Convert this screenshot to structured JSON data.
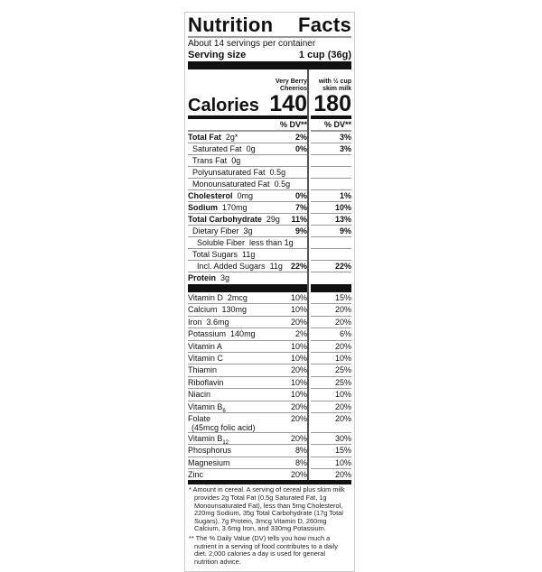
{
  "title": [
    "Nutrition",
    "Facts"
  ],
  "servings_per_container": "About 14 servings per container",
  "serving_size": {
    "label": "Serving size",
    "value": "1 cup (36g)"
  },
  "columns": [
    {
      "header": "Very Berry Cheerios",
      "calories": "140"
    },
    {
      "header": "with ½ cup skim milk",
      "calories": "180"
    }
  ],
  "calories_label": "Calories",
  "dv_header": "% DV**",
  "nutrients": [
    {
      "name": "Total Fat",
      "amount": "2g*",
      "bold": true,
      "indent": 0,
      "dv1": "2%",
      "dv2": "3%"
    },
    {
      "name": "Saturated Fat",
      "amount": "0g",
      "bold": false,
      "indent": 1,
      "dv1": "0%",
      "dv2": "3%"
    },
    {
      "name": "Trans Fat",
      "amount": "0g",
      "bold": false,
      "indent": 1,
      "dv1": "",
      "dv2": ""
    },
    {
      "name": "Polyunsaturated Fat",
      "amount": "0.5g",
      "bold": false,
      "indent": 1,
      "dv1": "",
      "dv2": ""
    },
    {
      "name": "Monounsaturated Fat",
      "amount": "0.5g",
      "bold": false,
      "indent": 1,
      "dv1": "",
      "dv2": ""
    },
    {
      "name": "Cholesterol",
      "amount": "0mg",
      "bold": true,
      "indent": 0,
      "dv1": "0%",
      "dv2": "1%"
    },
    {
      "name": "Sodium",
      "amount": "170mg",
      "bold": true,
      "indent": 0,
      "dv1": "7%",
      "dv2": "10%"
    },
    {
      "name": "Total Carbohydrate",
      "amount": "29g",
      "bold": true,
      "indent": 0,
      "dv1": "11%",
      "dv2": "13%"
    },
    {
      "name": "Dietary Fiber",
      "amount": "3g",
      "bold": false,
      "indent": 1,
      "dv1": "9%",
      "dv2": "9%"
    },
    {
      "name": "Soluble Fiber",
      "amount": "less than 1g",
      "bold": false,
      "indent": 2,
      "dv1": "",
      "dv2": ""
    },
    {
      "name": "Total Sugars",
      "amount": "11g",
      "bold": false,
      "indent": 1,
      "dv1": "",
      "dv2": ""
    },
    {
      "name": "Incl. Added Sugars",
      "amount": "11g",
      "bold": false,
      "indent": 2,
      "dv1": "22%",
      "dv2": "22%"
    },
    {
      "name": "Protein",
      "amount": "3g",
      "bold": true,
      "indent": 0,
      "dv1": "",
      "dv2": ""
    }
  ],
  "vitamins": [
    {
      "name": "Vitamin D",
      "amount": "2mcg",
      "dv1": "10%",
      "dv2": "15%"
    },
    {
      "name": "Calcium",
      "amount": "130mg",
      "dv1": "10%",
      "dv2": "20%"
    },
    {
      "name": "Iron",
      "amount": "3.6mg",
      "dv1": "20%",
      "dv2": "20%"
    },
    {
      "name": "Potassium",
      "amount": "140mg",
      "dv1": "2%",
      "dv2": "6%"
    },
    {
      "name": "Vitamin A",
      "amount": "",
      "dv1": "10%",
      "dv2": "20%"
    },
    {
      "name": "Vitamin C",
      "amount": "",
      "dv1": "10%",
      "dv2": "10%"
    },
    {
      "name": "Thiamin",
      "amount": "",
      "dv1": "20%",
      "dv2": "25%"
    },
    {
      "name": "Riboflavin",
      "amount": "",
      "dv1": "10%",
      "dv2": "25%"
    },
    {
      "name": "Niacin",
      "amount": "",
      "dv1": "10%",
      "dv2": "10%"
    },
    {
      "name": "Vitamin B",
      "sub": "6",
      "amount": "",
      "dv1": "20%",
      "dv2": "20%"
    },
    {
      "name": "Folate",
      "amount": "",
      "note": "(45mcg folic acid)",
      "dv1": "20%",
      "dv2": "20%"
    },
    {
      "name": "Vitamin B",
      "sub": "12",
      "amount": "",
      "dv1": "20%",
      "dv2": "30%"
    },
    {
      "name": "Phosphorus",
      "amount": "",
      "dv1": "8%",
      "dv2": "15%"
    },
    {
      "name": "Magnesium",
      "amount": "",
      "dv1": "8%",
      "dv2": "10%"
    },
    {
      "name": "Zinc",
      "amount": "",
      "dv1": "20%",
      "dv2": "20%"
    }
  ],
  "footnotes": [
    "* Amount in cereal. A serving of cereal plus skim milk provides 2g Total Fat (0.5g Saturated Fat, 1g Monounsaturated Fat), less than 5mg Cholesterol, 220mg Sodium, 35g Total Carbohydrate (17g Total Sugars), 7g Protein, 3mcg Vitamin D, 260mg Calcium, 3.6mg Iron, and 330mg Potassium.",
    "** The % Daily Value (DV) tells you how much a nutrient in a serving of food contributes to a daily diet. 2,000 calories a day is used for general nutrition advice."
  ]
}
